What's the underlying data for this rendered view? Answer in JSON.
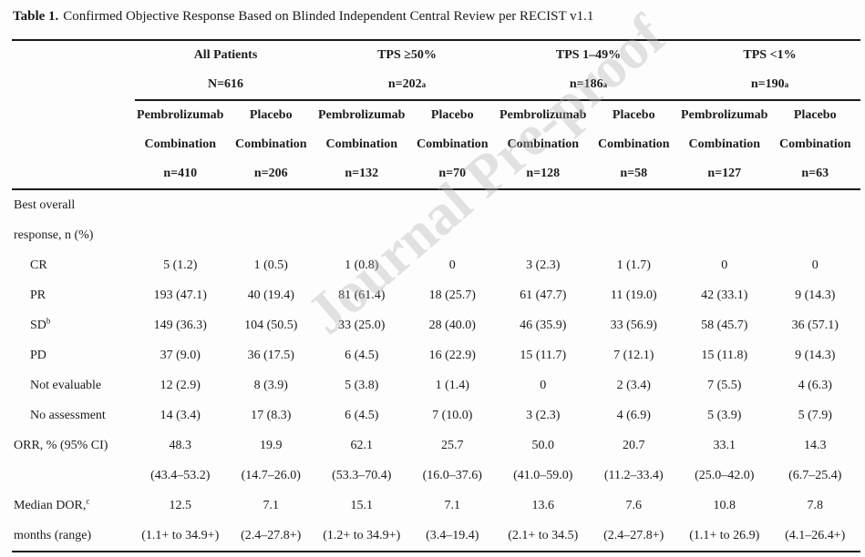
{
  "title": {
    "label": "Table 1.",
    "text": "Confirmed Objective Response Based on Blinded Independent Central Review per RECIST v1.1"
  },
  "watermark": "Journal Pre-proof",
  "table": {
    "groups": [
      {
        "name": "All Patients",
        "n": "N=616",
        "n_sup": ""
      },
      {
        "name": "TPS ≥50%",
        "n": "n=202",
        "n_sup": "a"
      },
      {
        "name": "TPS 1–49%",
        "n": "n=186",
        "n_sup": "a"
      },
      {
        "name": "TPS <1%",
        "n": "n=190",
        "n_sup": "a"
      }
    ],
    "arms": [
      {
        "drug": "Pembrolizumab",
        "type": "Combination",
        "n": "n=410"
      },
      {
        "drug": "Placebo",
        "type": "Combination",
        "n": "n=206"
      },
      {
        "drug": "Pembrolizumab",
        "type": "Combination",
        "n": "n=132"
      },
      {
        "drug": "Placebo",
        "type": "Combination",
        "n": "n=70"
      },
      {
        "drug": "Pembrolizumab",
        "type": "Combination",
        "n": "n=128"
      },
      {
        "drug": "Placebo",
        "type": "Combination",
        "n": "n=58"
      },
      {
        "drug": "Pembrolizumab",
        "type": "Combination",
        "n": "n=127"
      },
      {
        "drug": "Placebo",
        "type": "Combination",
        "n": "n=63"
      }
    ],
    "rows": [
      {
        "label": "Best overall",
        "label2": "response, n (%)",
        "indent": false,
        "values": [
          "",
          "",
          "",
          "",
          "",
          "",
          "",
          ""
        ],
        "values2": [
          "",
          "",
          "",
          "",
          "",
          "",
          "",
          ""
        ]
      },
      {
        "label": "CR",
        "indent": true,
        "values": [
          "5 (1.2)",
          "1 (0.5)",
          "1 (0.8)",
          "0",
          "3 (2.3)",
          "1 (1.7)",
          "0",
          "0"
        ]
      },
      {
        "label": "PR",
        "indent": true,
        "values": [
          "193 (47.1)",
          "40 (19.4)",
          "81 (61.4)",
          "18 (25.7)",
          "61 (47.7)",
          "11 (19.0)",
          "42 (33.1)",
          "9 (14.3)"
        ]
      },
      {
        "label": "SD",
        "label_sup": "b",
        "indent": true,
        "values": [
          "149 (36.3)",
          "104 (50.5)",
          "33 (25.0)",
          "28 (40.0)",
          "46 (35.9)",
          "33 (56.9)",
          "58 (45.7)",
          "36 (57.1)"
        ]
      },
      {
        "label": "PD",
        "indent": true,
        "values": [
          "37 (9.0)",
          "36 (17.5)",
          "6 (4.5)",
          "16 (22.9)",
          "15 (11.7)",
          "7 (12.1)",
          "15 (11.8)",
          "9 (14.3)"
        ]
      },
      {
        "label": "Not evaluable",
        "indent": true,
        "values": [
          "12 (2.9)",
          "8 (3.9)",
          "5 (3.8)",
          "1 (1.4)",
          "0",
          "2 (3.4)",
          "7 (5.5)",
          "4 (6.3)"
        ]
      },
      {
        "label": "No assessment",
        "indent": true,
        "values": [
          "14 (3.4)",
          "17 (8.3)",
          "6 (4.5)",
          "7 (10.0)",
          "3 (2.3)",
          "4 (6.9)",
          "5 (3.9)",
          "5 (7.9)"
        ]
      },
      {
        "label": "ORR, % (95% CI)",
        "indent": false,
        "values": [
          "48.3",
          "19.9",
          "62.1",
          "25.7",
          "50.0",
          "20.7",
          "33.1",
          "14.3"
        ],
        "label2": "",
        "values2": [
          "(43.4–53.2)",
          "(14.7–26.0)",
          "(53.3–70.4)",
          "(16.0–37.6)",
          "(41.0–59.0)",
          "(11.2–33.4)",
          "(25.0–42.0)",
          "(6.7–25.4)"
        ]
      },
      {
        "label": "Median DOR,",
        "label_sup": "c",
        "indent": false,
        "values": [
          "12.5",
          "7.1",
          "15.1",
          "7.1",
          "13.6",
          "7.6",
          "10.8",
          "7.8"
        ],
        "label2": "months (range)",
        "values2": [
          "(1.1+ to 34.9+)",
          "(2.4–27.8+)",
          "(1.2+ to 34.9+)",
          "(3.4–19.4)",
          "(2.1+ to 34.5)",
          "(2.4–27.8+)",
          "(1.1+ to 26.9)",
          "(4.1–26.4+)"
        ]
      }
    ]
  }
}
